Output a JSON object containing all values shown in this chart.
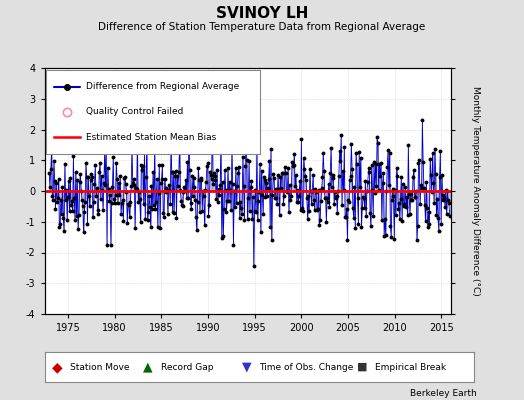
{
  "title": "SVINOY LH",
  "subtitle": "Difference of Station Temperature Data from Regional Average",
  "ylabel": "Monthly Temperature Anomaly Difference (°C)",
  "xlabel_years": [
    1975,
    1980,
    1985,
    1990,
    1995,
    2000,
    2005,
    2010,
    2015
  ],
  "ylim": [
    -4,
    4
  ],
  "yticks": [
    -4,
    -3,
    -2,
    -1,
    0,
    1,
    2,
    3,
    4
  ],
  "xlim_start": 1972.5,
  "xlim_end": 2016.0,
  "bias_value": 0.0,
  "background_color": "#e0e0e0",
  "plot_bg_color": "#ffffff",
  "line_color": "#0000cc",
  "bias_color": "#ff0000",
  "marker_color": "#000000",
  "fill_color": "#8888dd",
  "seed": 42
}
